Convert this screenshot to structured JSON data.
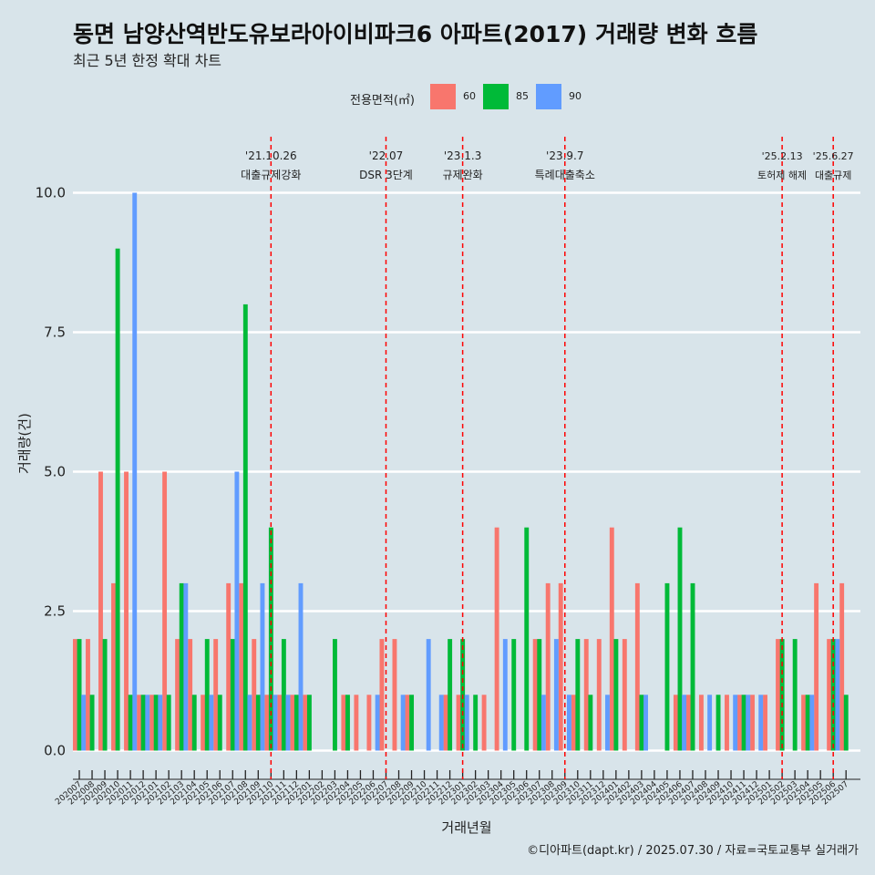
{
  "title": "동면 남양산역반도유보라아이비파크6 아파트(2017) 거래량 변화 흐름",
  "subtitle": "최근 5년 한정 확대 차트",
  "caption": "©디아파트(dapt.kr) / 2025.07.30 / 자료=국토교통부 실거래가",
  "legend": {
    "title": "전용면적(㎡)",
    "items": [
      {
        "label": "60",
        "color": "#f8766d"
      },
      {
        "label": "85",
        "color": "#00ba38"
      },
      {
        "label": "90",
        "color": "#619cff"
      }
    ]
  },
  "chart_data": {
    "type": "bar",
    "xlabel": "거래년월",
    "ylabel": "거래량(건)",
    "ylim": [
      0,
      10.5
    ],
    "y_ticks": [
      "0.0",
      "2.5",
      "5.0",
      "7.5",
      "10.0"
    ],
    "categories": [
      "202007",
      "202008",
      "202009",
      "202010",
      "202011",
      "202012",
      "202101",
      "202102",
      "202103",
      "202104",
      "202105",
      "202106",
      "202107",
      "202108",
      "202109",
      "202110",
      "202111",
      "202112",
      "202201",
      "202202",
      "202203",
      "202204",
      "202205",
      "202206",
      "202207",
      "202208",
      "202209",
      "202210",
      "202211",
      "202212",
      "202301",
      "202302",
      "202303",
      "202304",
      "202305",
      "202306",
      "202307",
      "202308",
      "202309",
      "202310",
      "202311",
      "202312",
      "202401",
      "202402",
      "202403",
      "202404",
      "202405",
      "202406",
      "202407",
      "202408",
      "202409",
      "202410",
      "202411",
      "202412",
      "202501",
      "202502",
      "202503",
      "202504",
      "202505",
      "202506",
      "202507"
    ],
    "series": [
      {
        "name": "60",
        "color": "#f8766d",
        "values": [
          2,
          2,
          5,
          3,
          5,
          1,
          1,
          5,
          2,
          2,
          1,
          2,
          3,
          3,
          2,
          1,
          1,
          1,
          1,
          0,
          0,
          1,
          1,
          1,
          2,
          2,
          1,
          0,
          0,
          1,
          1,
          0,
          1,
          4,
          0,
          0,
          2,
          3,
          3,
          1,
          2,
          2,
          4,
          2,
          3,
          0,
          0,
          1,
          1,
          1,
          0,
          1,
          1,
          1,
          1,
          2,
          0,
          1,
          3,
          2,
          3
        ]
      },
      {
        "name": "85",
        "color": "#00ba38",
        "values": [
          2,
          1,
          2,
          9,
          1,
          1,
          1,
          1,
          3,
          1,
          2,
          1,
          2,
          8,
          1,
          4,
          2,
          1,
          1,
          0,
          2,
          1,
          0,
          0,
          0,
          0,
          1,
          0,
          0,
          2,
          2,
          1,
          0,
          0,
          2,
          4,
          2,
          0,
          0,
          2,
          1,
          0,
          2,
          0,
          1,
          0,
          3,
          4,
          3,
          0,
          1,
          0,
          1,
          0,
          0,
          2,
          2,
          1,
          0,
          2,
          1
        ]
      },
      {
        "name": "90",
        "color": "#619cff",
        "values": [
          1,
          0,
          0,
          0,
          10,
          1,
          1,
          0,
          3,
          0,
          1,
          0,
          5,
          1,
          3,
          1,
          1,
          3,
          0,
          0,
          0,
          0,
          0,
          1,
          0,
          1,
          0,
          2,
          1,
          0,
          1,
          0,
          0,
          2,
          0,
          0,
          1,
          2,
          1,
          0,
          0,
          1,
          0,
          0,
          1,
          0,
          0,
          1,
          0,
          1,
          0,
          1,
          1,
          1,
          0,
          0,
          0,
          1,
          0,
          2,
          0
        ]
      }
    ],
    "annotations": [
      {
        "label": "'21.10.26",
        "sub": "대출규제강화",
        "category": "202110"
      },
      {
        "label": "'22.07",
        "sub": "DSR 3단계",
        "category": "202207"
      },
      {
        "label": "'23.1.3",
        "sub": "규제완화",
        "category": "202301"
      },
      {
        "label": "'23.9.7",
        "sub": "특례대출축소",
        "category": "202309"
      },
      {
        "label": "'25.2.13",
        "sub": "토허제 해제",
        "category": "202502"
      },
      {
        "label": "'25.6.27",
        "sub": "대출규제",
        "category": "202506"
      }
    ],
    "grid": true,
    "legend_position": "top"
  }
}
